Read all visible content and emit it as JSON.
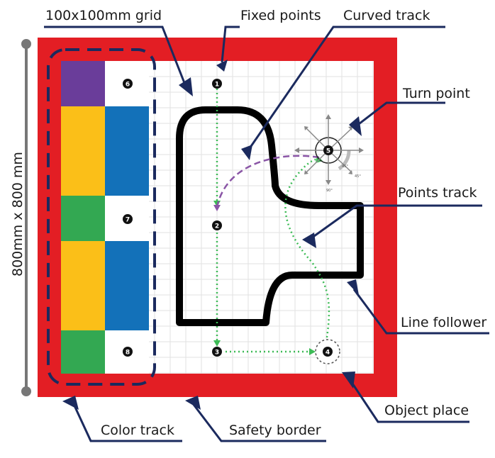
{
  "dimension_label": "800mm x 800 mm",
  "labels": {
    "grid": "100x100mm grid",
    "fixed_points": "Fixed points",
    "curved_track": "Curved track",
    "turn_point": "Turn point",
    "points_track": "Points track",
    "line_follower": "Line follower",
    "object_place": "Object place",
    "color_track": "Color track",
    "safety_border": "Safety border"
  },
  "points": [
    "1",
    "2",
    "3",
    "4",
    "5",
    "6",
    "7",
    "8"
  ],
  "compass_angles": [
    "45°",
    "90°",
    "45°"
  ],
  "colors": {
    "border_red": "#e31e24",
    "navy": "#1b2a5e",
    "purple": "#6a3d9a",
    "yellow": "#fbbf18",
    "blue": "#1371b9",
    "green": "#33a852",
    "dotted_green": "#3dbb56",
    "dashed_purple": "#8a55a6"
  },
  "color_track": [
    [
      "purple",
      "white"
    ],
    [
      "yellow",
      "blue"
    ],
    [
      "yellow",
      "blue"
    ],
    [
      "green",
      "white"
    ],
    [
      "yellow",
      "blue"
    ],
    [
      "yellow",
      "blue"
    ],
    [
      "green",
      "white"
    ]
  ]
}
